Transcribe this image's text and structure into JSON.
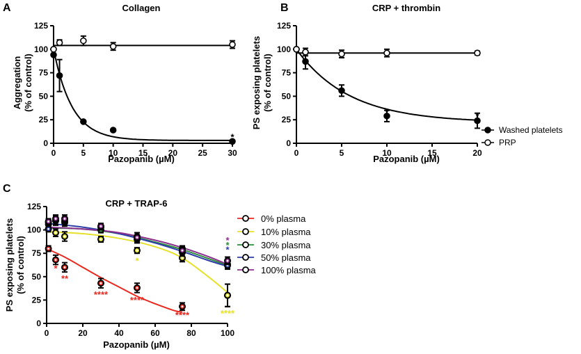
{
  "chart_data": [
    {
      "panel": "A",
      "type": "scatter",
      "title": "Collagen",
      "xlabel": "Pazopanib (µM)",
      "ylabel": [
        "Aggregation",
        "(% of control)"
      ],
      "xlim": [
        0,
        30
      ],
      "ylim": [
        0,
        125
      ],
      "xticks": [
        0,
        5,
        10,
        15,
        20,
        25,
        30
      ],
      "yticks": [
        0,
        25,
        50,
        75,
        100,
        125
      ],
      "series": [
        {
          "name": "Washed platelets",
          "marker": "filled",
          "x": [
            0,
            1,
            5,
            10,
            30
          ],
          "y": [
            94,
            72,
            23,
            14,
            2
          ],
          "err": [
            0,
            17,
            0,
            0,
            0
          ],
          "fit": {
            "model": "exp",
            "top": 100,
            "bottom": 3,
            "k": 0.32
          }
        },
        {
          "name": "PRP",
          "marker": "open",
          "x": [
            0,
            1,
            5,
            10,
            30
          ],
          "y": [
            100,
            107,
            109,
            103,
            105
          ],
          "err": [
            0,
            3,
            5,
            4,
            4
          ],
          "fit": {
            "model": "flat",
            "value": 104
          }
        }
      ],
      "annotations": [
        {
          "x": 30,
          "y": 2,
          "text": "*",
          "color": "#000000"
        }
      ]
    },
    {
      "panel": "B",
      "type": "scatter",
      "title": "CRP + thrombin",
      "xlabel": "Pazopanib (µM)",
      "ylabel": [
        "PS exposing platelets",
        "(% of control)"
      ],
      "xlim": [
        0,
        20
      ],
      "ylim": [
        0,
        125
      ],
      "xticks": [
        0,
        5,
        10,
        15,
        20
      ],
      "yticks": [
        0,
        25,
        50,
        75,
        100,
        125
      ],
      "series": [
        {
          "name": "Washed platelets",
          "marker": "filled",
          "x": [
            0,
            1,
            5,
            10,
            20
          ],
          "y": [
            100,
            87,
            56,
            29,
            24
          ],
          "err": [
            0,
            8,
            6,
            6,
            8
          ],
          "fit": {
            "model": "exp",
            "top": 100,
            "bottom": 22,
            "k": 0.17
          }
        },
        {
          "name": "PRP",
          "marker": "open",
          "x": [
            0,
            1,
            5,
            10,
            20
          ],
          "y": [
            100,
            97,
            95,
            96,
            96
          ],
          "err": [
            0,
            4,
            4,
            4,
            2
          ],
          "fit": {
            "model": "flat",
            "value": 96
          }
        }
      ],
      "annotations": [
        {
          "x": 10,
          "y": 29,
          "text": "*",
          "color": "#000000"
        },
        {
          "x": 20,
          "y": 24,
          "text": "*",
          "color": "#000000"
        }
      ],
      "legend": [
        {
          "label": "Washed platelets",
          "marker": "filled"
        },
        {
          "label": "PRP",
          "marker": "open"
        }
      ]
    },
    {
      "panel": "C",
      "type": "scatter",
      "title": "CRP + TRAP-6",
      "xlabel": "Pazopanib (µM)",
      "ylabel": [
        "PS exposing platelets",
        "(% of control)"
      ],
      "xlim": [
        0,
        100
      ],
      "ylim": [
        0,
        125
      ],
      "xticks": [
        0,
        20,
        40,
        60,
        80,
        100
      ],
      "yticks": [
        0,
        25,
        50,
        75,
        100,
        125
      ],
      "series": [
        {
          "name": "0% plasma",
          "color": "#e8281e",
          "x": [
            1,
            5,
            10,
            30,
            50,
            75,
            100
          ],
          "y": [
            80,
            68,
            60,
            43,
            38,
            18,
            30
          ],
          "err": [
            3,
            5,
            5,
            5,
            5,
            4,
            12
          ],
          "fit": {
            "x": [
              0,
              10,
              20,
              30,
              40,
              50,
              60,
              70,
              75
            ],
            "y": [
              80,
              71,
              60,
              49,
              39,
              29,
              21,
              14,
              12
            ]
          }
        },
        {
          "name": "10% plasma",
          "color": "#e5e028",
          "x": [
            1,
            5,
            10,
            30,
            50,
            75,
            100
          ],
          "y": [
            106,
            97,
            93,
            90,
            78,
            70,
            30
          ],
          "err": [
            3,
            4,
            5,
            3,
            3,
            4,
            12
          ],
          "fit": {
            "x": [
              0,
              20,
              40,
              60,
              75,
              90,
              100
            ],
            "y": [
              98,
              96,
              91,
              82,
              70,
              49,
              33
            ]
          }
        },
        {
          "name": "30% plasma",
          "color": "#2e8b3a",
          "x": [
            1,
            5,
            10,
            30,
            50,
            75,
            100
          ],
          "y": [
            108,
            110,
            108,
            100,
            90,
            80,
            63
          ],
          "err": [
            3,
            4,
            4,
            3,
            4,
            3,
            4
          ],
          "fit": {
            "x": [
              0,
              20,
              40,
              60,
              75,
              90,
              100
            ],
            "y": [
              102,
              101,
              96,
              87,
              79,
              69,
              62
            ]
          }
        },
        {
          "name": "50% plasma",
          "color": "#2c3ea8",
          "x": [
            1,
            5,
            10,
            30,
            50,
            75,
            100
          ],
          "y": [
            101,
            110,
            110,
            103,
            93,
            76,
            62
          ],
          "err": [
            3,
            5,
            4,
            3,
            4,
            4,
            4
          ],
          "fit": {
            "x": [
              0,
              20,
              40,
              60,
              75,
              90,
              100
            ],
            "y": [
              107,
              103,
              96,
              86,
              77,
              67,
              61
            ]
          }
        },
        {
          "name": "100% plasma",
          "color": "#8b2f8e",
          "x": [
            1,
            5,
            10,
            30,
            50,
            75,
            100
          ],
          "y": [
            109,
            112,
            112,
            104,
            92,
            78,
            67
          ],
          "err": [
            3,
            4,
            4,
            3,
            5,
            4,
            4
          ],
          "fit": {
            "x": [
              0,
              20,
              40,
              60,
              75,
              90,
              100
            ],
            "y": [
              103,
              101,
              97,
              89,
              81,
              71,
              63
            ]
          }
        }
      ],
      "annotations": [
        {
          "x": 5,
          "y": 54,
          "text": "*",
          "color": "#e8281e"
        },
        {
          "x": 10,
          "y": 43,
          "text": "**",
          "color": "#e8281e"
        },
        {
          "x": 30,
          "y": 26,
          "text": "****",
          "color": "#e8281e"
        },
        {
          "x": 50,
          "y": 20,
          "text": "****",
          "color": "#e8281e"
        },
        {
          "x": 75,
          "y": 4,
          "text": "****",
          "color": "#e8281e"
        },
        {
          "x": 50,
          "y": 62,
          "text": "*",
          "color": "#e5e028"
        },
        {
          "x": 100,
          "y": 6,
          "text": "****",
          "color": "#e5e028"
        },
        {
          "x": 100,
          "y": 74,
          "text": "*",
          "color": "#2c3ea8"
        },
        {
          "x": 100,
          "y": 79,
          "text": "*",
          "color": "#2e8b3a"
        },
        {
          "x": 100,
          "y": 84,
          "text": "*",
          "color": "#8b2f8e"
        }
      ],
      "legend": [
        {
          "label": "0% plasma",
          "color": "#e8281e"
        },
        {
          "label": "10% plasma",
          "color": "#e5e028"
        },
        {
          "label": "30% plasma",
          "color": "#2e8b3a"
        },
        {
          "label": "50% plasma",
          "color": "#2c3ea8"
        },
        {
          "label": "100% plasma",
          "color": "#8b2f8e"
        }
      ]
    }
  ]
}
